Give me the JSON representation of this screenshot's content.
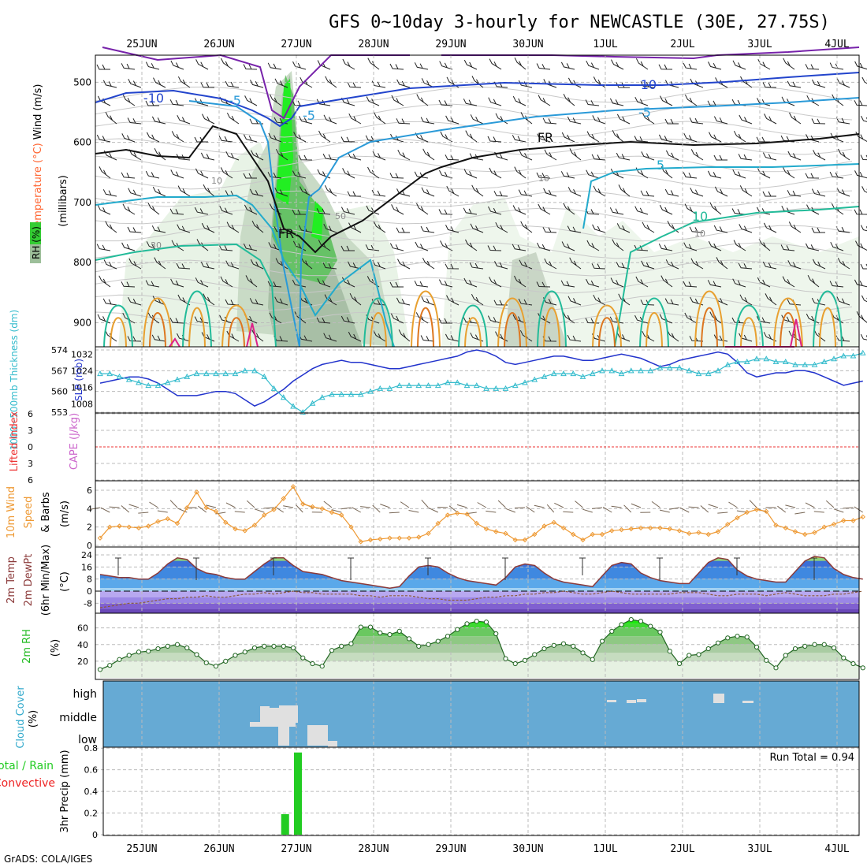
{
  "title": "GFS 0~10day 3-hourly for NEWCASTLE (30E, 27.75S)",
  "footer": "GrADS: COLA/IGES",
  "colors": {
    "rh": "#33cc33",
    "temperature": "#ff6633",
    "wind": "#333399",
    "thickness": "#33bbcc",
    "slp": "#2233cc",
    "lifted": "#ee3333",
    "cape": "#cc66cc",
    "wind10": "#ff9922",
    "precip_total": "#22cc22",
    "precip_conv": "#ee2222",
    "cloud_bg": "#66aad4"
  },
  "chart_data": [
    {
      "type": "contour",
      "panel": "upper-air",
      "x_ticks": [
        "25JUN",
        "26JUN",
        "27JUN",
        "28JUN",
        "29JUN",
        "30JUN",
        "1JUL",
        "2JUL",
        "3JUL",
        "4JUL"
      ],
      "yticks": [
        500,
        600,
        700,
        800,
        900
      ],
      "ylabel_parts": [
        "RH (%)",
        "Temperature (°C)",
        "Wind (m/s)"
      ],
      "ylabel2": "(millibars)",
      "isotherm_labels": [
        "-10",
        "-10",
        "-5",
        "-5",
        "-5",
        "FR",
        "FR",
        "5",
        "10"
      ],
      "rh_labels": [
        "10",
        "10",
        "10",
        "30",
        "50"
      ]
    },
    {
      "type": "line",
      "panel": "slp-thickness",
      "yticks_left": [
        553,
        560,
        567,
        574
      ],
      "yticks_right": [
        1008,
        1016,
        1024,
        1032
      ],
      "ylabel_left": "1000~500mb Thickness (dm)",
      "ylabel_right": "SLP (mb)",
      "series": [
        {
          "name": "SLP (mb)",
          "axis": "right",
          "values": [
            1018,
            1019,
            1020,
            1021,
            1021,
            1020,
            1018,
            1015,
            1012,
            1012,
            1012,
            1013,
            1014,
            1014,
            1013,
            1010,
            1007,
            1009,
            1012,
            1015,
            1019,
            1022,
            1025,
            1027,
            1028,
            1029,
            1028,
            1028,
            1027,
            1026,
            1025,
            1025,
            1026,
            1027,
            1028,
            1029,
            1030,
            1031,
            1033,
            1034,
            1033,
            1031,
            1028,
            1027,
            1028,
            1029,
            1030,
            1031,
            1031,
            1030,
            1029,
            1029,
            1030,
            1031,
            1032,
            1031,
            1030,
            1028,
            1026,
            1027,
            1029,
            1030,
            1031,
            1032,
            1033,
            1032,
            1028,
            1023,
            1021,
            1022,
            1023,
            1023,
            1024,
            1024,
            1023,
            1021,
            1019,
            1017,
            1018,
            1019
          ]
        },
        {
          "name": "1000~500mb Thickness (dm)",
          "axis": "left",
          "values": [
            566,
            566,
            565,
            564,
            563,
            562,
            562,
            563,
            564,
            565,
            566,
            566,
            566,
            566,
            566,
            567,
            567,
            565,
            561,
            558,
            555,
            553,
            556,
            558,
            559,
            559,
            559,
            559,
            560,
            561,
            561,
            562,
            562,
            562,
            562,
            562,
            563,
            563,
            562,
            562,
            561,
            561,
            561,
            562,
            563,
            564,
            565,
            566,
            566,
            566,
            565,
            566,
            567,
            567,
            566,
            567,
            567,
            567,
            568,
            568,
            568,
            567,
            566,
            566,
            567,
            569,
            570,
            570,
            571,
            571,
            570,
            570,
            569,
            569,
            569,
            570,
            571,
            572,
            572,
            573
          ]
        }
      ]
    },
    {
      "type": "line",
      "panel": "stability",
      "yticks_left": [
        6,
        3,
        0,
        -3,
        -6
      ],
      "yticks_left_labels": [
        "6",
        "3",
        "0",
        "3",
        "6"
      ],
      "ylabel_left": "Lifted Index",
      "ylabel_right": "CAPE (J/kg)",
      "series": [
        {
          "name": "Lifted Index",
          "values": [
            0
          ]
        }
      ]
    },
    {
      "type": "line",
      "panel": "wind10",
      "yticks": [
        0,
        2,
        4,
        6
      ],
      "ylabel": "10m Wind Speed & Barbs",
      "yunit": "(m/s)",
      "series": [
        {
          "name": "10m Wind Speed",
          "values": [
            0.8,
            2.0,
            2.1,
            2.0,
            1.9,
            2.1,
            2.6,
            2.9,
            2.4,
            4.1,
            5.8,
            4.1,
            3.7,
            2.5,
            1.8,
            1.6,
            2.2,
            3.3,
            3.9,
            5.1,
            6.4,
            4.5,
            4.2,
            4.0,
            3.6,
            3.3,
            2.0,
            0.4,
            0.6,
            0.7,
            0.8,
            0.8,
            0.8,
            0.9,
            1.3,
            2.4,
            3.3,
            3.5,
            3.4,
            2.4,
            1.8,
            1.5,
            1.3,
            0.6,
            0.6,
            1.2,
            2.1,
            2.5,
            1.9,
            1.2,
            0.6,
            1.2,
            1.2,
            1.6,
            1.7,
            1.8,
            1.9,
            1.9,
            1.9,
            1.8,
            1.6,
            1.3,
            1.4,
            1.2,
            1.5,
            2.3,
            3.0,
            3.6,
            3.9,
            3.7,
            2.2,
            1.9,
            1.5,
            1.2,
            1.4,
            2.0,
            2.3,
            2.7,
            2.7,
            3.1
          ]
        }
      ]
    },
    {
      "type": "area",
      "panel": "temperature",
      "yticks": [
        -8,
        0,
        8,
        16,
        24
      ],
      "ylabel": "2m Temp 2m DewPt (6hr Min/Max)",
      "yunit": "(°C)",
      "series": [
        {
          "name": "2m Temp",
          "values": [
            11,
            10,
            9,
            9,
            8,
            8,
            12,
            18,
            22,
            21,
            15,
            12,
            11,
            9,
            8,
            8,
            13,
            18,
            22,
            22,
            17,
            13,
            12,
            11,
            9,
            7,
            6,
            5,
            4,
            3,
            2,
            3,
            10,
            16,
            17,
            16,
            12,
            9,
            7,
            6,
            5,
            4,
            9,
            16,
            18,
            17,
            12,
            8,
            6,
            5,
            4,
            3,
            10,
            17,
            19,
            18,
            12,
            9,
            7,
            6,
            5,
            5,
            12,
            19,
            22,
            21,
            14,
            10,
            8,
            7,
            6,
            6,
            13,
            20,
            23,
            22,
            15,
            11,
            9,
            8
          ]
        },
        {
          "name": "2m DewPt",
          "values": [
            -11,
            -10,
            -9,
            -8,
            -8,
            -7,
            -6,
            -5,
            -5,
            -4,
            -4,
            -3,
            -4,
            -4,
            -3,
            -2,
            -2,
            -1,
            -2,
            -1,
            0,
            -1,
            -1,
            -2,
            -2,
            -2,
            -2,
            -3,
            -3,
            -4,
            -3,
            -3,
            -3,
            -4,
            -5,
            -5,
            -6,
            -6,
            -6,
            -5,
            -4,
            -4,
            -3,
            -3,
            -2,
            -2,
            -1,
            -1,
            0,
            -1,
            -2,
            -2,
            -1,
            0,
            -1,
            -2,
            -2,
            -2,
            -2,
            -2,
            -1,
            -1,
            -1,
            -2,
            -3,
            -3,
            -2,
            -2,
            -2,
            -3,
            -2,
            -1,
            -2,
            -3,
            -3,
            -3,
            -2,
            -2,
            -1,
            0
          ]
        }
      ]
    },
    {
      "type": "area",
      "panel": "rh2m",
      "yticks": [
        20,
        40,
        60
      ],
      "ylabel": "2m RH",
      "yunit": "(%)",
      "series": [
        {
          "name": "2m RH",
          "values": [
            10,
            15,
            22,
            27,
            31,
            32,
            35,
            38,
            40,
            36,
            28,
            18,
            14,
            20,
            27,
            31,
            36,
            38,
            38,
            38,
            36,
            24,
            17,
            14,
            33,
            38,
            41,
            61,
            61,
            54,
            52,
            56,
            47,
            38,
            40,
            44,
            50,
            58,
            65,
            68,
            67,
            53,
            23,
            17,
            21,
            28,
            35,
            39,
            41,
            38,
            30,
            22,
            44,
            56,
            64,
            70,
            68,
            62,
            55,
            32,
            17,
            27,
            28,
            35,
            42,
            48,
            50,
            49,
            37,
            21,
            12,
            27,
            35,
            38,
            40,
            40,
            36,
            24,
            17,
            12
          ]
        }
      ]
    },
    {
      "type": "bar",
      "panel": "cloud",
      "yticks_labels": [
        "high",
        "middle",
        "low"
      ],
      "ylabel": "Cloud Cover",
      "yunit": "(%)"
    },
    {
      "type": "bar",
      "panel": "precip",
      "yticks": [
        0,
        0.2,
        0.4,
        0.6,
        0.8
      ],
      "ylabel": "3hr Precip (mm)",
      "legend_total": "Total / Rain",
      "legend_conv": "Convective",
      "run_total_label": "Run Total = 0.94",
      "bars": [
        {
          "x": 19.0,
          "value": 0.19
        },
        {
          "x": 20.0,
          "value": 0.76
        }
      ]
    }
  ]
}
